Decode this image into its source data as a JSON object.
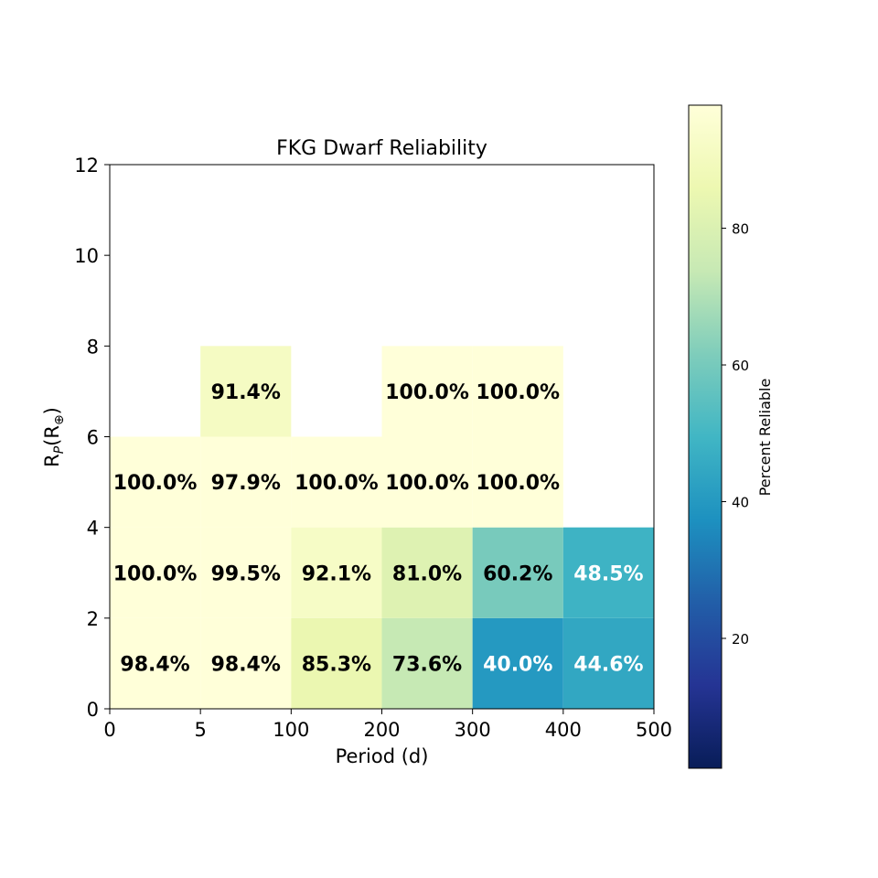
{
  "chart_data": {
    "type": "heatmap",
    "title": "FKG Dwarf Reliability",
    "xlabel": "Period (d)",
    "ylabel": "R",
    "ylabel_sub": "P",
    "ylabel_paren": "(R",
    "ylabel_sym": "⊕",
    "ylabel_close": ")",
    "x_tick_labels": [
      "0",
      "5",
      "100",
      "200",
      "300",
      "400",
      "500"
    ],
    "y_tick_labels": [
      "0",
      "2",
      "4",
      "6",
      "8",
      "10",
      "12"
    ],
    "ylim": [
      0,
      12
    ],
    "x_bins": 6,
    "grid": false,
    "colorbar": {
      "label": "Percent Reliable",
      "colormap": "YlGnBu",
      "range": [
        1,
        98
      ],
      "ticks": [
        20,
        40,
        60,
        80
      ]
    },
    "cells": [
      {
        "xbin": 0,
        "y0": 0,
        "y1": 2,
        "value": 98.4,
        "label": "98.4%"
      },
      {
        "xbin": 1,
        "y0": 0,
        "y1": 2,
        "value": 98.4,
        "label": "98.4%"
      },
      {
        "xbin": 2,
        "y0": 0,
        "y1": 2,
        "value": 85.3,
        "label": "85.3%"
      },
      {
        "xbin": 3,
        "y0": 0,
        "y1": 2,
        "value": 73.6,
        "label": "73.6%"
      },
      {
        "xbin": 4,
        "y0": 0,
        "y1": 2,
        "value": 40.0,
        "label": "40.0%"
      },
      {
        "xbin": 5,
        "y0": 0,
        "y1": 2,
        "value": 44.6,
        "label": "44.6%"
      },
      {
        "xbin": 0,
        "y0": 2,
        "y1": 4,
        "value": 100.0,
        "label": "100.0%"
      },
      {
        "xbin": 1,
        "y0": 2,
        "y1": 4,
        "value": 99.5,
        "label": "99.5%"
      },
      {
        "xbin": 2,
        "y0": 2,
        "y1": 4,
        "value": 92.1,
        "label": "92.1%"
      },
      {
        "xbin": 3,
        "y0": 2,
        "y1": 4,
        "value": 81.0,
        "label": "81.0%"
      },
      {
        "xbin": 4,
        "y0": 2,
        "y1": 4,
        "value": 60.2,
        "label": "60.2%"
      },
      {
        "xbin": 5,
        "y0": 2,
        "y1": 4,
        "value": 48.5,
        "label": "48.5%"
      },
      {
        "xbin": 0,
        "y0": 4,
        "y1": 6,
        "value": 100.0,
        "label": "100.0%"
      },
      {
        "xbin": 1,
        "y0": 4,
        "y1": 6,
        "value": 97.9,
        "label": "97.9%"
      },
      {
        "xbin": 2,
        "y0": 4,
        "y1": 6,
        "value": 100.0,
        "label": "100.0%"
      },
      {
        "xbin": 3,
        "y0": 4,
        "y1": 6,
        "value": 100.0,
        "label": "100.0%"
      },
      {
        "xbin": 4,
        "y0": 4,
        "y1": 6,
        "value": 100.0,
        "label": "100.0%"
      },
      {
        "xbin": 1,
        "y0": 6,
        "y1": 8,
        "value": 91.4,
        "label": "91.4%"
      },
      {
        "xbin": 3,
        "y0": 6,
        "y1": 8,
        "value": 100.0,
        "label": "100.0%"
      },
      {
        "xbin": 4,
        "y0": 6,
        "y1": 8,
        "value": 100.0,
        "label": "100.0%"
      }
    ]
  }
}
